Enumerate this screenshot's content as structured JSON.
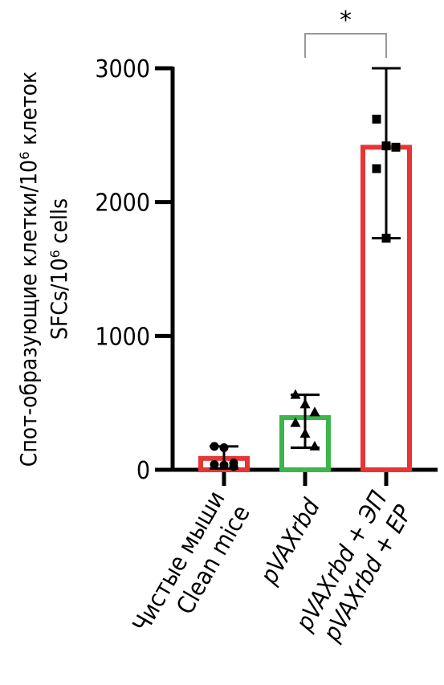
{
  "chart_data": {
    "type": "bar",
    "ylabel_lines": [
      "Спот-образующие клетки/10⁶ клеток",
      "SFCs/10⁶ cells"
    ],
    "ylim": [
      0,
      3000
    ],
    "yticks": [
      0,
      1000,
      2000,
      3000
    ],
    "categories": [
      {
        "lines": [
          "Чистые мыши",
          "Clean mice"
        ],
        "italic": false
      },
      {
        "lines": [
          "pVAXrbd"
        ],
        "italic": true
      },
      {
        "lines": [
          "pVAXrbd + ЭП",
          "pVAXrbd + EP"
        ],
        "italic": true
      }
    ],
    "bars": [
      {
        "value": 85,
        "err_low": 10,
        "err_high": 175,
        "color": "#e53535",
        "marker": "circle",
        "points": [
          175,
          165,
          50,
          40,
          35,
          25
        ]
      },
      {
        "value": 390,
        "err_low": 165,
        "err_high": 560,
        "color": "#3cb54a",
        "marker": "triangle",
        "points": [
          560,
          490,
          430,
          350,
          270,
          175
        ]
      },
      {
        "value": 2410,
        "err_low": 1730,
        "err_high": 3000,
        "color": "#e53535",
        "marker": "square",
        "points": [
          2620,
          2420,
          2410,
          2250,
          1730
        ]
      }
    ],
    "significance": {
      "from": 1,
      "to": 2,
      "label": "*"
    },
    "grid": false
  }
}
